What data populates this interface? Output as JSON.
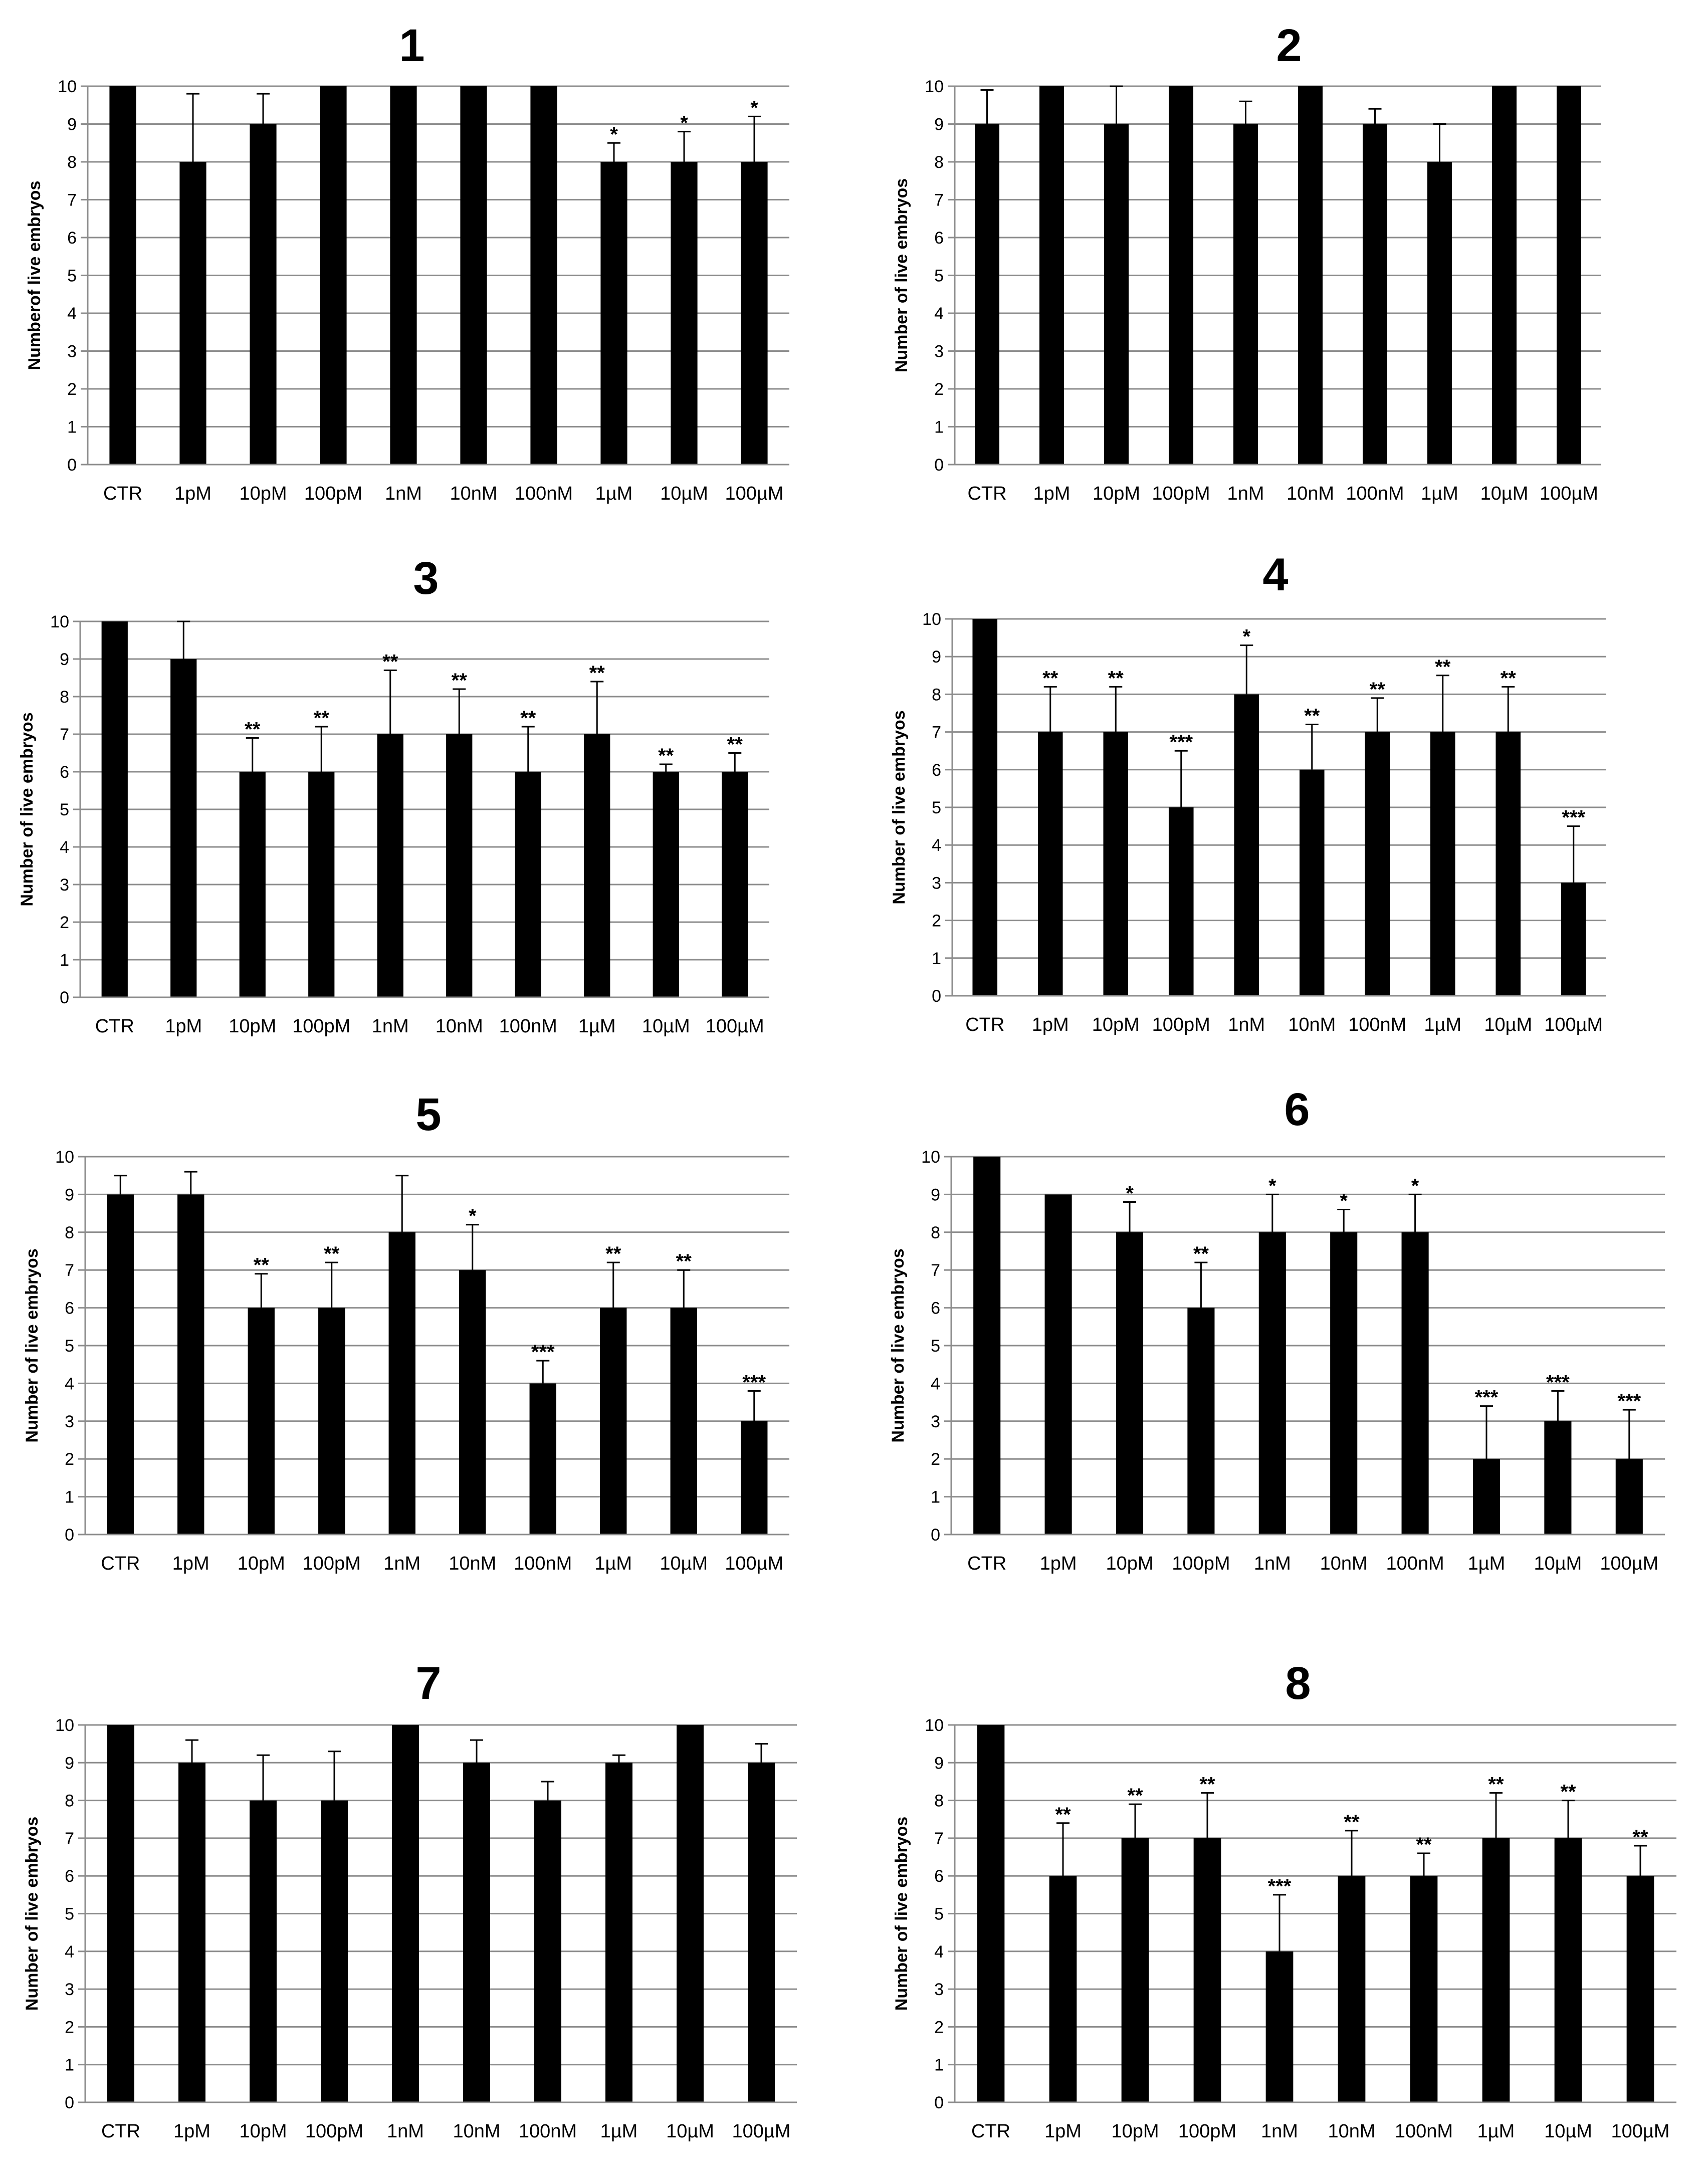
{
  "figure": {
    "background": "#ffffff",
    "bar_color": "#000000",
    "grid_color": "#8c8c8c"
  },
  "chart_data": [
    {
      "type": "bar",
      "title": "1",
      "ylabel": "Numberof live embryos",
      "ylim": [
        0,
        10
      ],
      "yticks": [
        0,
        1,
        2,
        3,
        4,
        5,
        6,
        7,
        8,
        9,
        10
      ],
      "grid": true,
      "categories": [
        "CTR",
        "1pM",
        "10pM",
        "100pM",
        "1nM",
        "10nM",
        "100nM",
        "1µM",
        "10µM",
        "100µM"
      ],
      "values": [
        10,
        8,
        9,
        10,
        10,
        10,
        10,
        8,
        8,
        8
      ],
      "errors": [
        0,
        1.8,
        0.8,
        0,
        0,
        0,
        0,
        0.5,
        0.8,
        1.2
      ],
      "significance": [
        "",
        "",
        "",
        "",
        "",
        "",
        "",
        "*",
        "*",
        "*"
      ]
    },
    {
      "type": "bar",
      "title": "2",
      "ylabel": "Number of live embryos",
      "ylim": [
        0,
        10
      ],
      "yticks": [
        0,
        1,
        2,
        3,
        4,
        5,
        6,
        7,
        8,
        9,
        10
      ],
      "grid": true,
      "categories": [
        "CTR",
        "1pM",
        "10pM",
        "100pM",
        "1nM",
        "10nM",
        "100nM",
        "1µM",
        "10µM",
        "100µM"
      ],
      "values": [
        9,
        10,
        9,
        10,
        9,
        10,
        9,
        8,
        10,
        10
      ],
      "errors": [
        0.9,
        0,
        1.0,
        0,
        0.6,
        0,
        0.4,
        1.0,
        0,
        0
      ],
      "significance": [
        "",
        "",
        "",
        "",
        "",
        "",
        "",
        "",
        "",
        ""
      ]
    },
    {
      "type": "bar",
      "title": "3",
      "ylabel": "Number of live embryos",
      "ylim": [
        0,
        10
      ],
      "yticks": [
        0,
        1,
        2,
        3,
        4,
        5,
        6,
        7,
        8,
        9,
        10
      ],
      "grid": true,
      "categories": [
        "CTR",
        "1pM",
        "10pM",
        "100pM",
        "1nM",
        "10nM",
        "100nM",
        "1µM",
        "10µM",
        "100µM"
      ],
      "values": [
        10,
        9,
        6,
        6,
        7,
        7,
        6,
        7,
        6,
        6
      ],
      "errors": [
        0,
        1.0,
        0.9,
        1.2,
        1.7,
        1.2,
        1.2,
        1.4,
        0.2,
        0.5
      ],
      "significance": [
        "",
        "",
        "**",
        "**",
        "**",
        "**",
        "**",
        "**",
        "**",
        "**"
      ]
    },
    {
      "type": "bar",
      "title": "4",
      "ylabel": "Number of live embryos",
      "ylim": [
        0,
        10
      ],
      "yticks": [
        0,
        1,
        2,
        3,
        4,
        5,
        6,
        7,
        8,
        9,
        10
      ],
      "grid": true,
      "categories": [
        "CTR",
        "1pM",
        "10pM",
        "100pM",
        "1nM",
        "10nM",
        "100nM",
        "1µM",
        "10µM",
        "100µM"
      ],
      "values": [
        10,
        7,
        7,
        5,
        8,
        6,
        7,
        7,
        7,
        3
      ],
      "errors": [
        0,
        1.2,
        1.2,
        1.5,
        1.3,
        1.2,
        0.9,
        1.5,
        1.2,
        1.5
      ],
      "significance": [
        "",
        "**",
        "**",
        "***",
        "*",
        "**",
        "**",
        "**",
        "**",
        "***"
      ]
    },
    {
      "type": "bar",
      "title": "5",
      "ylabel": "Number of live embryos",
      "ylim": [
        0,
        10
      ],
      "yticks": [
        0,
        1,
        2,
        3,
        4,
        5,
        6,
        7,
        8,
        9,
        10
      ],
      "grid": true,
      "categories": [
        "CTR",
        "1pM",
        "10pM",
        "100pM",
        "1nM",
        "10nM",
        "100nM",
        "1µM",
        "10µM",
        "100µM"
      ],
      "values": [
        9,
        9,
        6,
        6,
        8,
        7,
        4,
        6,
        6,
        3
      ],
      "errors": [
        0.5,
        0.6,
        0.9,
        1.2,
        1.5,
        1.2,
        0.6,
        1.2,
        1.0,
        0.8
      ],
      "significance": [
        "",
        "",
        "**",
        "**",
        "",
        "*",
        "***",
        "**",
        "**",
        "***"
      ]
    },
    {
      "type": "bar",
      "title": "6",
      "ylabel": "Number of live embryos",
      "ylim": [
        0,
        10
      ],
      "yticks": [
        0,
        1,
        2,
        3,
        4,
        5,
        6,
        7,
        8,
        9,
        10
      ],
      "grid": true,
      "categories": [
        "CTR",
        "1pM",
        "10pM",
        "100pM",
        "1nM",
        "10nM",
        "100nM",
        "1µM",
        "10µM",
        "100µM"
      ],
      "values": [
        10,
        9,
        8,
        6,
        8,
        8,
        8,
        2,
        3,
        2
      ],
      "errors": [
        0,
        0,
        0.8,
        1.2,
        1.0,
        0.6,
        1.0,
        1.4,
        0.8,
        1.3
      ],
      "significance": [
        "",
        "",
        "*",
        "**",
        "*",
        "*",
        "*",
        "***",
        "***",
        "***"
      ]
    },
    {
      "type": "bar",
      "title": "7",
      "ylabel": "Number of live embryos",
      "ylim": [
        0,
        10
      ],
      "yticks": [
        0,
        1,
        2,
        3,
        4,
        5,
        6,
        7,
        8,
        9,
        10
      ],
      "grid": true,
      "categories": [
        "CTR",
        "1pM",
        "10pM",
        "100pM",
        "1nM",
        "10nM",
        "100nM",
        "1µM",
        "10µM",
        "100µM"
      ],
      "values": [
        10,
        9,
        8,
        8,
        10,
        9,
        8,
        9,
        10,
        9
      ],
      "errors": [
        0,
        0.6,
        1.2,
        1.3,
        0,
        0.6,
        0.5,
        0.2,
        0,
        0.5
      ],
      "significance": [
        "",
        "",
        "",
        "",
        "",
        "",
        "",
        "",
        "",
        ""
      ]
    },
    {
      "type": "bar",
      "title": "8",
      "ylabel": "Number of live embryos",
      "ylim": [
        0,
        10
      ],
      "yticks": [
        0,
        1,
        2,
        3,
        4,
        5,
        6,
        7,
        8,
        9,
        10
      ],
      "grid": true,
      "categories": [
        "CTR",
        "1pM",
        "10pM",
        "100pM",
        "1nM",
        "10nM",
        "100nM",
        "1µM",
        "10µM",
        "100µM"
      ],
      "values": [
        10,
        6,
        7,
        7,
        4,
        6,
        6,
        7,
        7,
        6
      ],
      "errors": [
        0,
        1.4,
        0.9,
        1.2,
        1.5,
        1.2,
        0.6,
        1.2,
        1.0,
        0.8
      ],
      "significance": [
        "",
        "**",
        "**",
        "**",
        "***",
        "**",
        "**",
        "**",
        "**",
        "**"
      ]
    }
  ]
}
